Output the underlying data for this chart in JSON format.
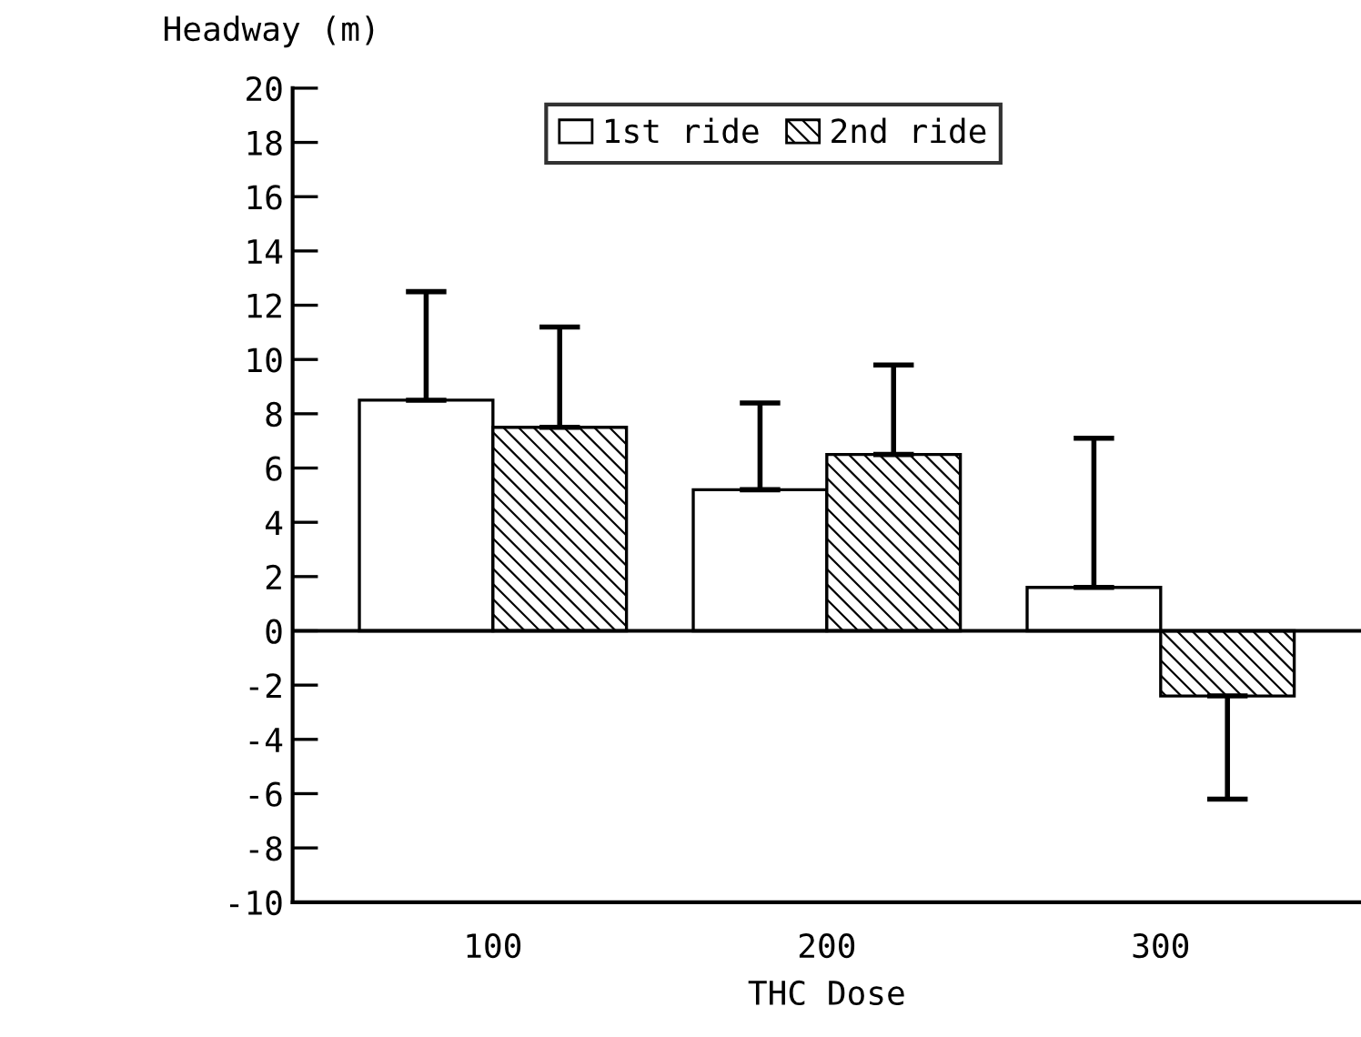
{
  "chart_data": {
    "type": "bar",
    "ylabel": "Headway (m)",
    "xlabel": "THC Dose",
    "categories": [
      "100",
      "200",
      "300"
    ],
    "series": [
      {
        "name": "1st ride",
        "color": "#ffffff",
        "values": [
          8.5,
          5.2,
          1.6
        ],
        "errors": [
          [
            8.5,
            12.5
          ],
          [
            5.2,
            8.4
          ],
          [
            1.6,
            7.1
          ]
        ]
      },
      {
        "name": "2nd ride",
        "color": "#000000",
        "values": [
          7.5,
          6.5,
          -2.4
        ],
        "errors": [
          [
            7.5,
            11.2
          ],
          [
            6.5,
            9.8
          ],
          [
            -6.2,
            -2.4
          ]
        ]
      }
    ],
    "ylim": [
      -10,
      20
    ],
    "yticks": [
      -10,
      -8,
      -6,
      -4,
      -2,
      0,
      2,
      4,
      6,
      8,
      10,
      12,
      14,
      16,
      18,
      20
    ],
    "ref_lines": [
      {
        "axis": "y",
        "value": 0,
        "color": "#000000"
      }
    ],
    "grid": false,
    "legend": "top"
  }
}
